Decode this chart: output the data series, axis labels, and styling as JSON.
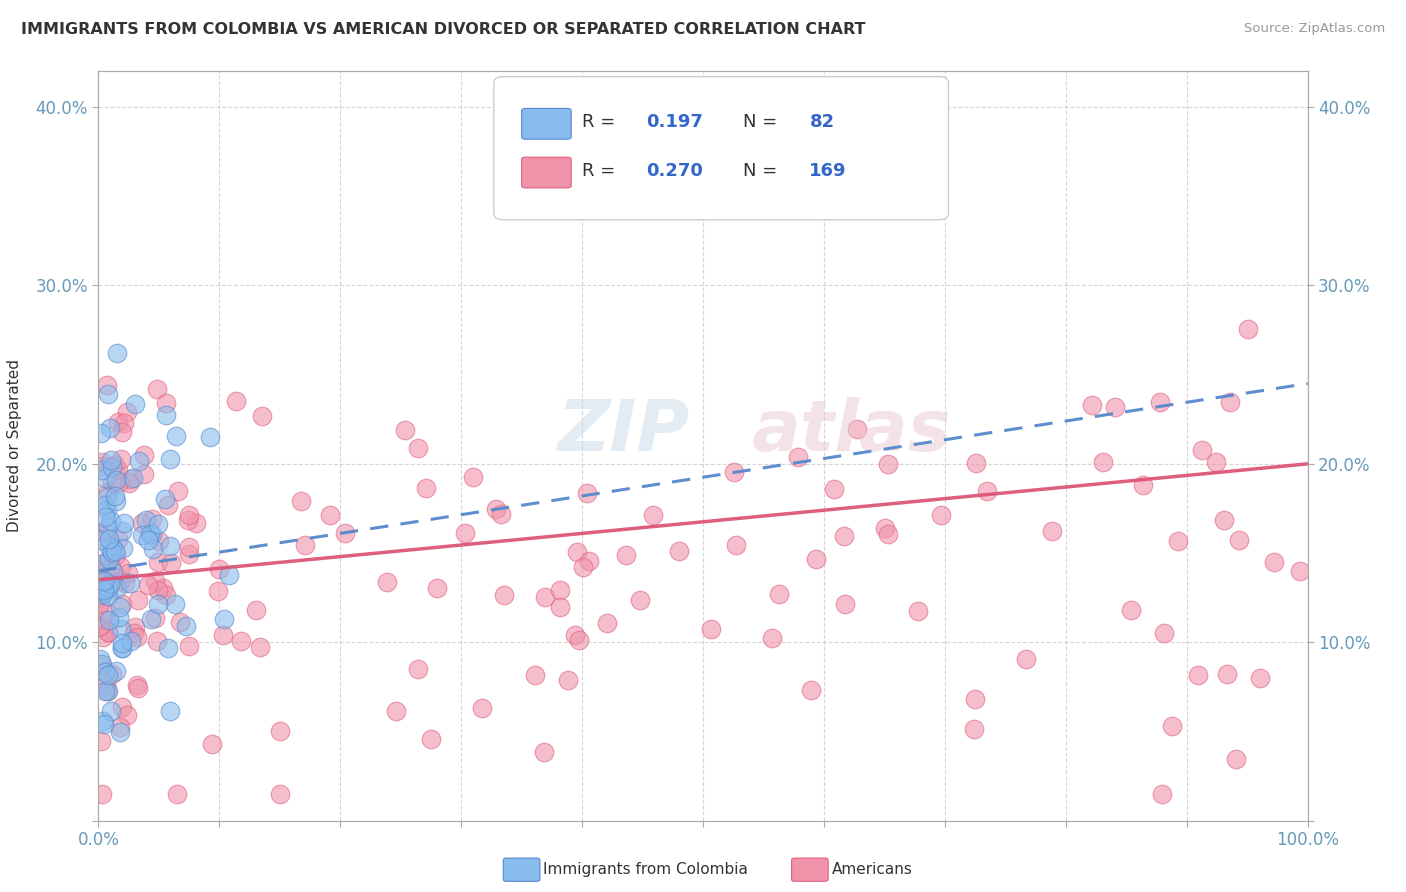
{
  "title": "IMMIGRANTS FROM COLOMBIA VS AMERICAN DIVORCED OR SEPARATED CORRELATION CHART",
  "source_text": "Source: ZipAtlas.com",
  "ylabel": "Divorced or Separated",
  "xlim": [
    0.0,
    100.0
  ],
  "ylim": [
    0.0,
    42.0
  ],
  "blue_R": 0.197,
  "blue_N": 82,
  "pink_R": 0.27,
  "pink_N": 169,
  "blue_color": "#88bbee",
  "pink_color": "#f093aa",
  "blue_edge_color": "#5588cc",
  "pink_edge_color": "#e06080",
  "blue_line_color": "#5588cc",
  "pink_line_color": "#dd5577",
  "background_color": "#ffffff",
  "grid_color": "#cccccc",
  "watermark": "ZIPAtlas",
  "legend_R_color": "#3366cc",
  "text_color": "#333333",
  "axis_label_color": "#6699bb",
  "blue_trend_start": 14.0,
  "blue_trend_end": 24.5,
  "pink_trend_start": 13.5,
  "pink_trend_end": 20.0
}
